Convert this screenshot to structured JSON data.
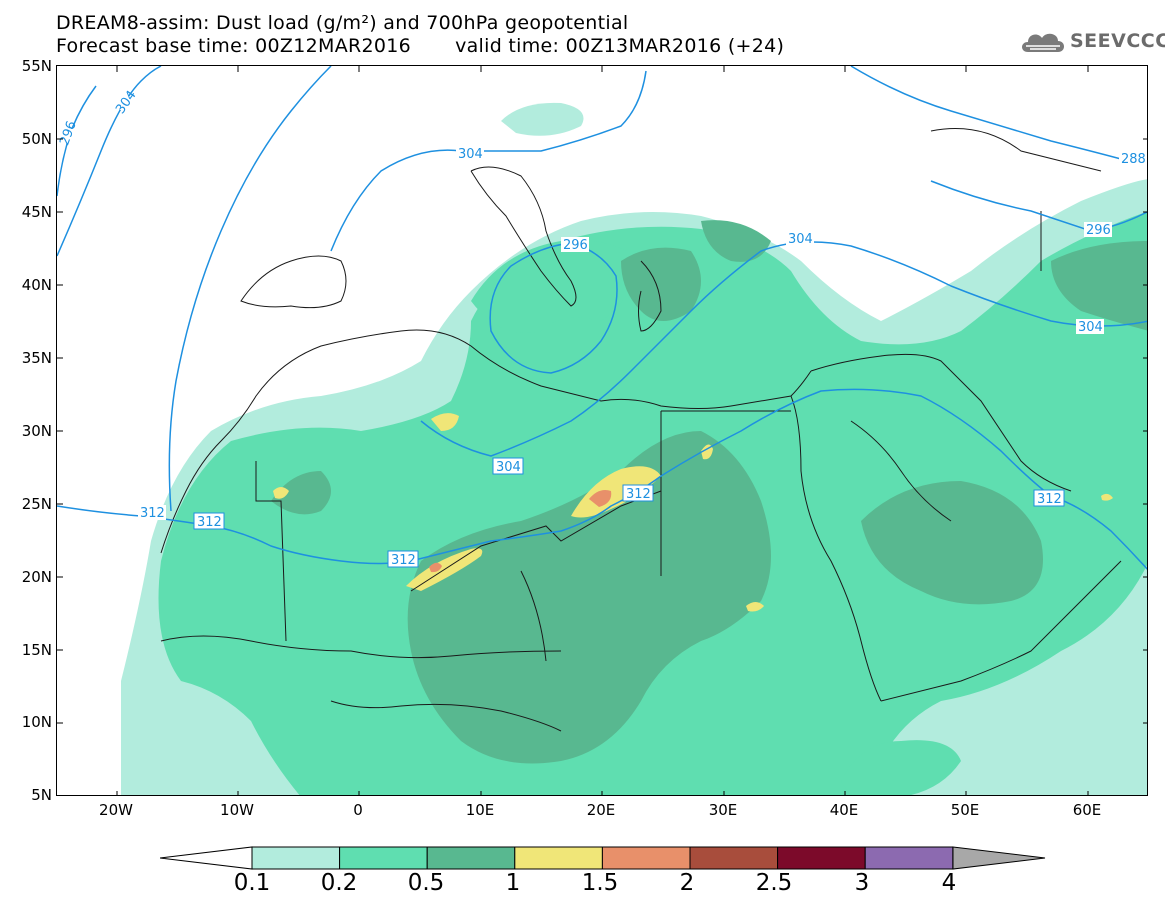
{
  "header": {
    "title_line1": "DREAM8-assim: Dust load (g/m²) and 700hPa geopotential",
    "forecast_base": "Forecast base time: 00Z12MAR2016",
    "valid_time": "valid time: 00Z13MAR2016 (+24)"
  },
  "logo": {
    "text": "SEEVCCC",
    "icon": "cloud-icon"
  },
  "axes": {
    "lat_labels": [
      "55N",
      "50N",
      "45N",
      "40N",
      "35N",
      "30N",
      "25N",
      "20N",
      "15N",
      "10N",
      "5N"
    ],
    "lon_labels": [
      "20W",
      "10W",
      "0",
      "10E",
      "20E",
      "30E",
      "40E",
      "50E",
      "60E"
    ]
  },
  "contour_labels": {
    "c296_nw": "296",
    "c304_nw": "304",
    "c304_alps": "304",
    "c296_adr": "296",
    "c304_balkan": "304",
    "c288_ne": "288",
    "c296_ne": "296",
    "c304_east": "304",
    "c304_sahara": "304",
    "c312_w1": "312",
    "c312_w2": "312",
    "c312_mid": "312",
    "c312_libya": "312",
    "c312_gulf": "312"
  },
  "colorbar": {
    "labels": [
      "0.1",
      "0.2",
      "0.5",
      "1",
      "1.5",
      "2",
      "2.5",
      "3",
      "4"
    ],
    "colors": [
      "#b2ecdd",
      "#5fdeb0",
      "#58b890",
      "#f0e678",
      "#e8906a",
      "#a84d3c",
      "#7c0a2a",
      "#8c6ab0",
      "#a8a8a8"
    ]
  },
  "colors": {
    "contour": "#1e90e0",
    "land_border": "#1a1a1a"
  }
}
